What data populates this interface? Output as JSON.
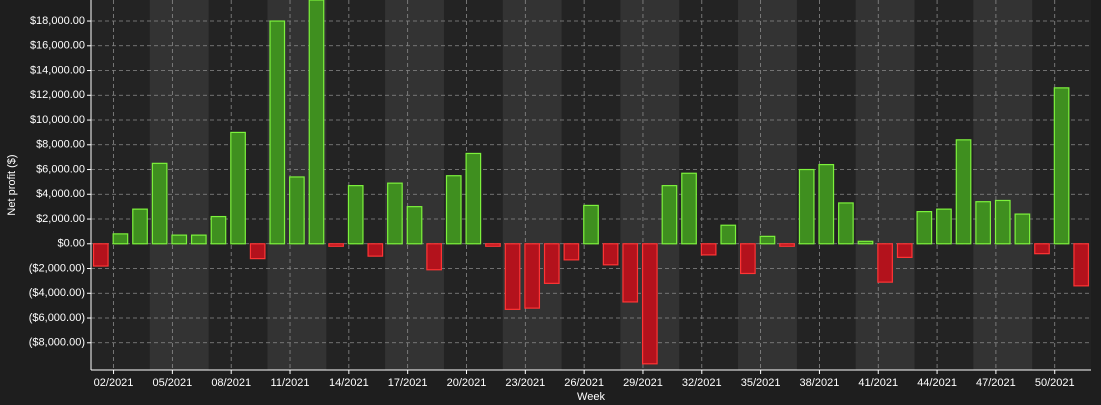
{
  "chart_data": {
    "type": "bar",
    "x_label": "Week",
    "y_label": "Net profit ($)",
    "categories": [
      "02/2021",
      null,
      null,
      "05/2021",
      null,
      null,
      "08/2021",
      null,
      null,
      "11/2021",
      null,
      null,
      "14/2021",
      null,
      null,
      "17/2021",
      null,
      null,
      "20/2021",
      null,
      null,
      "23/2021",
      null,
      null,
      "26/2021",
      null,
      null,
      "29/2021",
      null,
      null,
      "32/2021",
      null,
      null,
      "35/2021",
      null,
      null,
      "38/2021",
      null,
      null,
      "41/2021",
      null,
      null,
      "44/2021",
      null,
      null,
      "47/2021",
      null,
      null,
      "50/2021",
      null,
      null
    ],
    "values": [
      -1800,
      800,
      2800,
      6500,
      700,
      700,
      2200,
      9000,
      -1200,
      18000,
      5400,
      19700,
      -200,
      4700,
      -1000,
      4900,
      3000,
      -2100,
      5500,
      7300,
      -200,
      -5300,
      -5200,
      -3200,
      -1300,
      3100,
      -1700,
      -4700,
      -9700,
      4700,
      5700,
      -900,
      1500,
      -2400,
      600,
      -200,
      6000,
      6400,
      3300,
      200,
      -3100,
      -1100,
      2600,
      2800,
      8400,
      3400,
      3500,
      2400,
      -800,
      12600,
      -3400
    ],
    "positive_color": "#3f8f1f",
    "negative_color": "#b3121c",
    "ylim": [
      -10200,
      19700
    ],
    "yticks": [
      {
        "value": -8000,
        "label": "($8,000.00)"
      },
      {
        "value": -6000,
        "label": "($6,000.00)"
      },
      {
        "value": -4000,
        "label": "($4,000.00)"
      },
      {
        "value": -2000,
        "label": "($2,000.00)"
      },
      {
        "value": 0,
        "label": "$0.00"
      },
      {
        "value": 2000,
        "label": "$2,000.00"
      },
      {
        "value": 4000,
        "label": "$4,000.00"
      },
      {
        "value": 6000,
        "label": "$6,000.00"
      },
      {
        "value": 8000,
        "label": "$8,000.00"
      },
      {
        "value": 10000,
        "label": "$10,000.00"
      },
      {
        "value": 12000,
        "label": "$12,000.00"
      },
      {
        "value": 14000,
        "label": "$14,000.00"
      },
      {
        "value": 16000,
        "label": "$16,000.00"
      },
      {
        "value": 18000,
        "label": "$18,000.00"
      }
    ],
    "grid": true
  }
}
